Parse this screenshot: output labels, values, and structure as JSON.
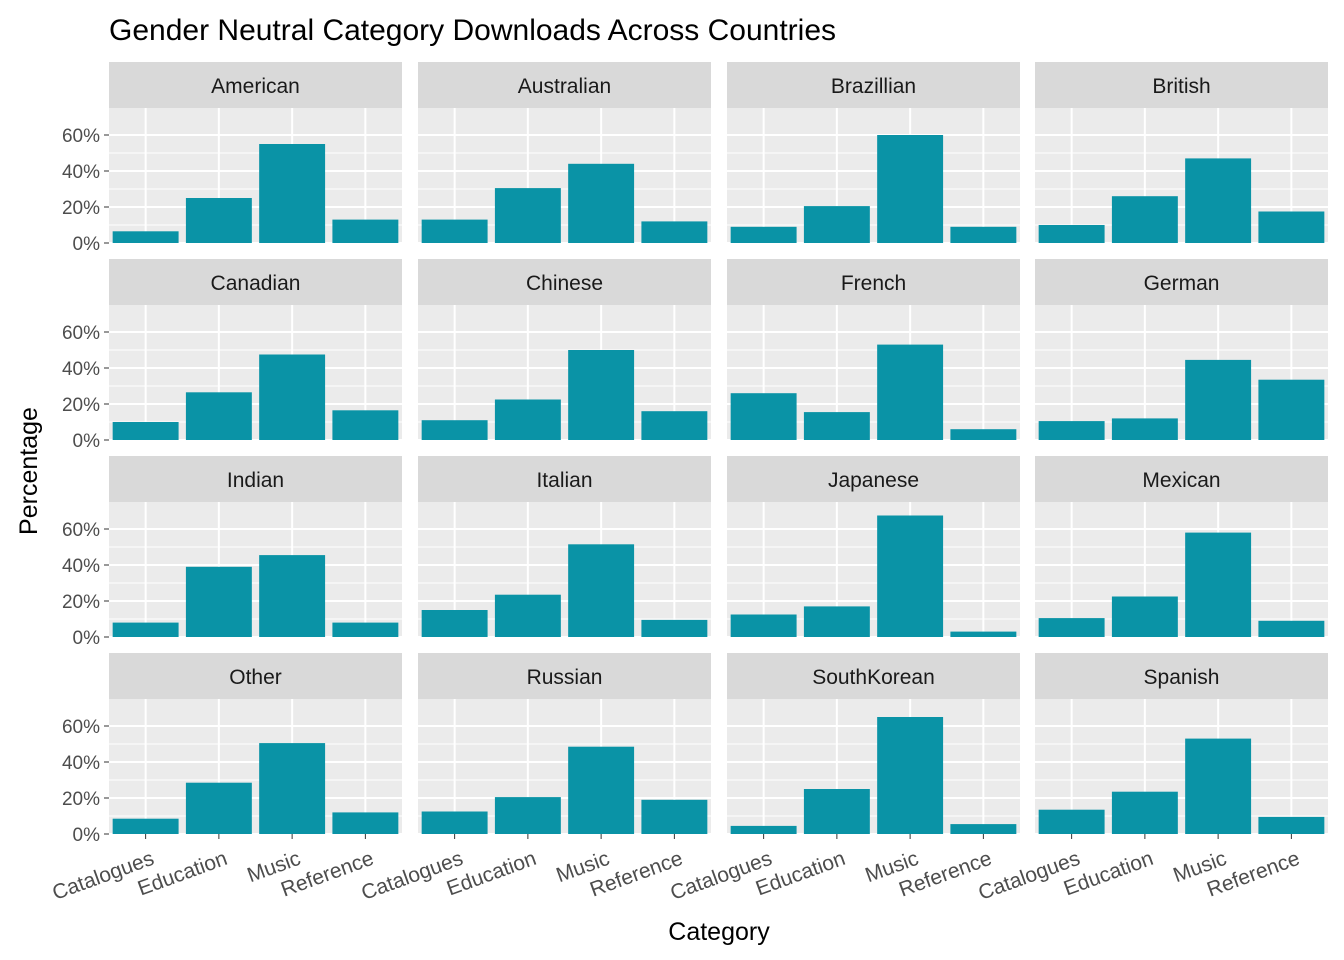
{
  "chart_data": {
    "type": "bar",
    "title": "Gender Neutral Category Downloads Across Countries",
    "xlabel": "Category",
    "ylabel": "Percentage",
    "categories": [
      "Catalogues",
      "Education",
      "Music",
      "Reference"
    ],
    "ylim": [
      0,
      75
    ],
    "y_ticks": [
      0,
      20,
      40,
      60
    ],
    "y_tick_labels": [
      "0%",
      "20%",
      "40%",
      "60%"
    ],
    "bar_color": "#0A93A6",
    "panel_background": "#EBEBEB",
    "strip_background": "#D9D9D9",
    "grid": true,
    "layout": "facet_wrap 4x4",
    "panels": [
      {
        "name": "American",
        "values": [
          6.5,
          25,
          55,
          13
        ]
      },
      {
        "name": "Australian",
        "values": [
          13,
          30.5,
          44,
          12
        ]
      },
      {
        "name": "Brazillian",
        "values": [
          9,
          20.5,
          60,
          9
        ]
      },
      {
        "name": "British",
        "values": [
          10,
          26,
          47,
          17.5
        ]
      },
      {
        "name": "Canadian",
        "values": [
          10,
          26.5,
          47.5,
          16.5
        ]
      },
      {
        "name": "Chinese",
        "values": [
          11,
          22.5,
          50,
          16
        ]
      },
      {
        "name": "French",
        "values": [
          26,
          15.5,
          53,
          6
        ]
      },
      {
        "name": "German",
        "values": [
          10.5,
          12,
          44.5,
          33.5
        ]
      },
      {
        "name": "Indian",
        "values": [
          8,
          39,
          45.5,
          8
        ]
      },
      {
        "name": "Italian",
        "values": [
          15,
          23.5,
          51.5,
          9.5
        ]
      },
      {
        "name": "Japanese",
        "values": [
          12.5,
          17,
          67.5,
          3
        ]
      },
      {
        "name": "Mexican",
        "values": [
          10.5,
          22.5,
          58,
          9
        ]
      },
      {
        "name": "Other",
        "values": [
          8.5,
          28.5,
          50.5,
          12
        ]
      },
      {
        "name": "Russian",
        "values": [
          12.5,
          20.5,
          48.5,
          19
        ]
      },
      {
        "name": "SouthKorean",
        "values": [
          4.5,
          25,
          65,
          5.5
        ]
      },
      {
        "name": "Spanish",
        "values": [
          13.5,
          23.5,
          53,
          9.5
        ]
      }
    ]
  }
}
